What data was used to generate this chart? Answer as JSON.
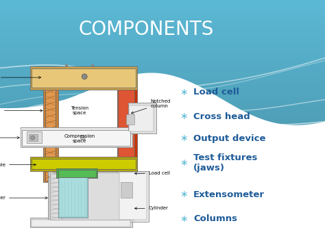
{
  "title": "COMPONENTS",
  "title_color": "#FFFFFF",
  "title_fontsize": 20,
  "bullet_items": [
    "Load cell",
    "Cross head",
    "Output device",
    "Test fixtures\n(jaws)",
    "Extensometer",
    "Columns"
  ],
  "bullet_color": "#1F5C99",
  "bullet_star_color": "#5BB8D4",
  "bullet_fontsize": 9.5,
  "bg_blue": "#5BB8D4",
  "bg_white": "#FFFFFF",
  "diagram": {
    "top_beam_color": "#D4A84B",
    "top_beam_highlight": "#E8C878",
    "left_col_color": "#C8813A",
    "left_col_highlight": "#E09850",
    "right_col_color": "#CC3300",
    "right_col_highlight": "#DD5533",
    "table_color": "#B8AA00",
    "table_highlight": "#CCCC00",
    "crosshead_color": "#E8E8E8",
    "load_cell_color": "#44AA44",
    "cylinder_body": "#CCCCCC",
    "piston_color": "#99CCCC",
    "base_color": "#DDDDDD"
  }
}
